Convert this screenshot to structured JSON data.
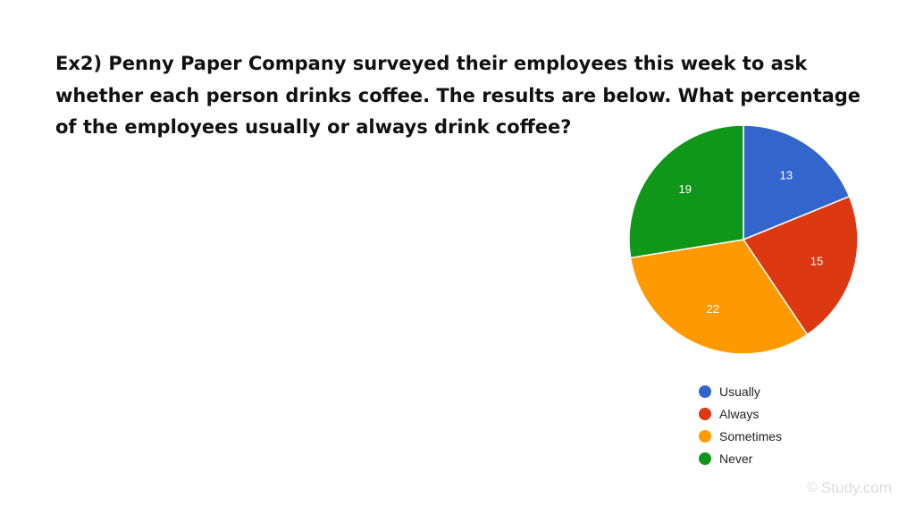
{
  "question": "Ex2) Penny Paper Company surveyed their employees this week to ask\nwhether each person drinks coffee. The results are below. What percentage\nof the employees usually or always drink coffee?",
  "chart_data": {
    "type": "pie",
    "categories": [
      "Usually",
      "Always",
      "Sometimes",
      "Never"
    ],
    "values": [
      13,
      15,
      22,
      19
    ],
    "colors": [
      "#3366cc",
      "#dc3912",
      "#ff9900",
      "#109618"
    ],
    "slice_labels": [
      "13",
      "15",
      "22",
      "19"
    ],
    "title": "",
    "legend_position": "bottom-right",
    "start_angle": "top, clockwise"
  },
  "legend": [
    {
      "label": "Usually",
      "color": "#3366cc"
    },
    {
      "label": "Always",
      "color": "#dc3912"
    },
    {
      "label": "Sometimes",
      "color": "#ff9900"
    },
    {
      "label": "Never",
      "color": "#109618"
    }
  ],
  "watermark": {
    "text": "Study.com",
    "icon": "copyright-icon"
  }
}
